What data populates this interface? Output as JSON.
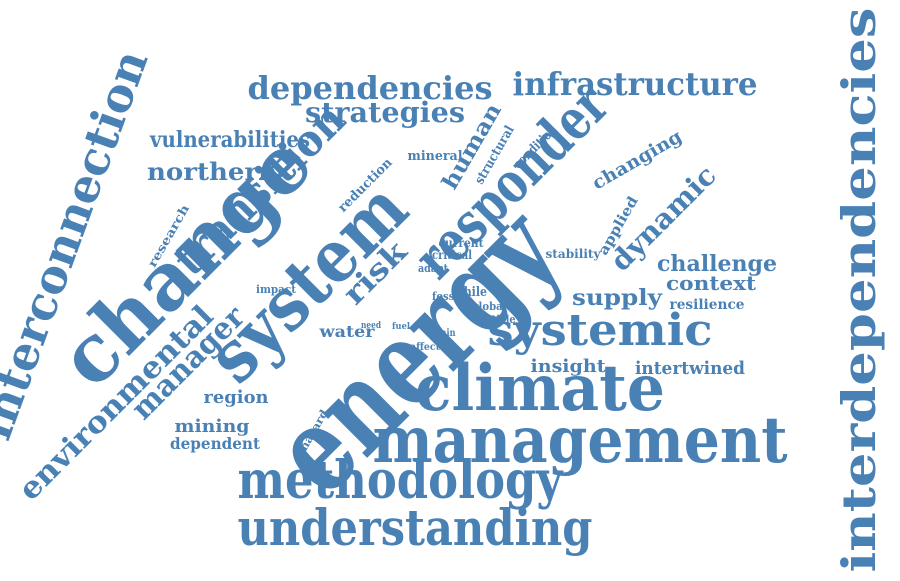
{
  "word_color": "#4a81b5",
  "background_color": "#ffffff",
  "words": [
    {
      "id": "energy",
      "text": "energy"
    },
    {
      "id": "climate",
      "text": "climate"
    },
    {
      "id": "management",
      "text": "management"
    },
    {
      "id": "change",
      "text": "change"
    },
    {
      "id": "system",
      "text": "system"
    },
    {
      "id": "responder",
      "text": "responder"
    },
    {
      "id": "interdependencies",
      "text": "interdependencies"
    },
    {
      "id": "interconnection",
      "text": "interconnection"
    },
    {
      "id": "methodology",
      "text": "methodology"
    },
    {
      "id": "understanding",
      "text": "understanding"
    },
    {
      "id": "systemic",
      "text": "systemic"
    },
    {
      "id": "transition",
      "text": "transition"
    },
    {
      "id": "environmental",
      "text": "environmental"
    },
    {
      "id": "manager",
      "text": "manager"
    },
    {
      "id": "dependencies",
      "text": "dependencies"
    },
    {
      "id": "infrastructure",
      "text": "infrastructure"
    },
    {
      "id": "strategies",
      "text": "strategies"
    },
    {
      "id": "risk",
      "text": "risk"
    },
    {
      "id": "dynamic",
      "text": "dynamic"
    },
    {
      "id": "vulnerabilities",
      "text": "vulnerabilities"
    },
    {
      "id": "northern",
      "text": "northern"
    },
    {
      "id": "human",
      "text": "human"
    },
    {
      "id": "supply",
      "text": "supply"
    },
    {
      "id": "challenge",
      "text": "challenge"
    },
    {
      "id": "context",
      "text": "context"
    },
    {
      "id": "changing",
      "text": "changing"
    },
    {
      "id": "intertwined",
      "text": "intertwined"
    },
    {
      "id": "insight",
      "text": "insight"
    },
    {
      "id": "region",
      "text": "region"
    },
    {
      "id": "mining",
      "text": "mining"
    },
    {
      "id": "dependent",
      "text": "dependent"
    },
    {
      "id": "water",
      "text": "water"
    },
    {
      "id": "resilience",
      "text": "resilience"
    },
    {
      "id": "applied",
      "text": "applied"
    },
    {
      "id": "structural",
      "text": "structural"
    },
    {
      "id": "condition",
      "text": "condition"
    },
    {
      "id": "mineral",
      "text": "mineral"
    },
    {
      "id": "reduction",
      "text": "reduction"
    },
    {
      "id": "research",
      "text": "research"
    },
    {
      "id": "current",
      "text": "current"
    },
    {
      "id": "critical",
      "text": "critical"
    },
    {
      "id": "stability",
      "text": "stability"
    },
    {
      "id": "adapt",
      "text": "adapt"
    },
    {
      "id": "impact",
      "text": "impact"
    },
    {
      "id": "fossil",
      "text": "fossil"
    },
    {
      "id": "chile",
      "text": "chile"
    },
    {
      "id": "global",
      "text": "global"
    },
    {
      "id": "article",
      "text": "article"
    },
    {
      "id": "need",
      "text": "need"
    },
    {
      "id": "fuel",
      "text": "fuel"
    },
    {
      "id": "chain",
      "text": "chain"
    },
    {
      "id": "affect",
      "text": "affect"
    },
    {
      "id": "hazard",
      "text": "hazard"
    }
  ]
}
